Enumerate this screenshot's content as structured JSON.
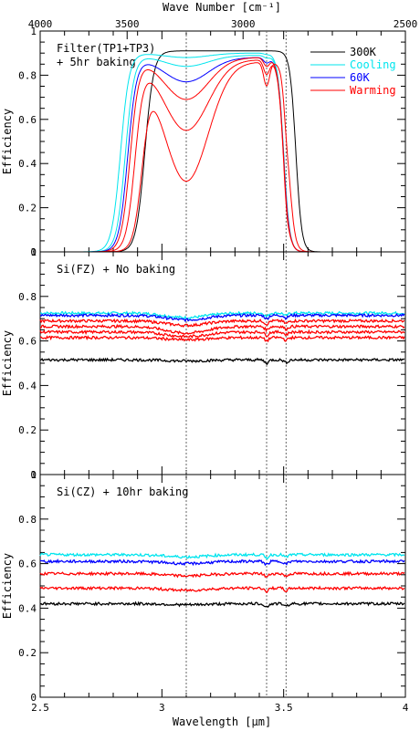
{
  "figure": {
    "top_axis_label": "Wave Number [cm⁻¹]",
    "bottom_axis_label": "Wavelength [μm]",
    "y_label": "Efficiency"
  },
  "legend": {
    "entries": [
      {
        "label": "300K",
        "color": "#000000"
      },
      {
        "label": "Cooling",
        "color": "#00e5ee"
      },
      {
        "label": "60K",
        "color": "#0000ff"
      },
      {
        "label": "Warming",
        "color": "#ff0000"
      }
    ],
    "placement": "top-right of top panel"
  },
  "chart_data": [
    {
      "type": "line",
      "panel_label_lines": [
        "Filter(TP1+TP3)",
        "+ 5hr baking"
      ],
      "xlabel": "Wavelength [μm]",
      "ylabel": "Efficiency",
      "xlim": [
        2.5,
        4.0
      ],
      "ylim": [
        0,
        1
      ],
      "x_ticks": [
        "2.5",
        "3",
        "3.5",
        "4"
      ],
      "y_ticks": [
        "0",
        "0.2",
        "0.4",
        "0.6",
        "0.8",
        "1"
      ],
      "top_axis": {
        "label": "Wave Number [cm⁻¹]",
        "ticks": [
          "4000",
          "3500",
          "3000",
          "2500"
        ]
      },
      "vertical_reference_lines_um": [
        3.1,
        3.43,
        3.51
      ],
      "series": [
        {
          "name": "300K",
          "color": "#000000",
          "edge_low": 2.93,
          "edge_high": 3.55,
          "plateau": 0.91,
          "dip_depth": 0.0
        },
        {
          "name": "Cooling",
          "color": "#00e5ee",
          "edge_low": 2.83,
          "edge_high": 3.5,
          "plateau": 0.9,
          "dip_depth": 0.02
        },
        {
          "name": "Cooling",
          "color": "#00e5ee",
          "edge_low": 2.85,
          "edge_high": 3.5,
          "plateau": 0.89,
          "dip_depth": 0.05
        },
        {
          "name": "60K",
          "color": "#0000ff",
          "edge_low": 2.86,
          "edge_high": 3.5,
          "plateau": 0.88,
          "dip_depth": 0.11
        },
        {
          "name": "Warming",
          "color": "#ff0000",
          "edge_low": 2.87,
          "edge_high": 3.5,
          "plateau": 0.88,
          "dip_depth": 0.19
        },
        {
          "name": "Warming",
          "color": "#ff0000",
          "edge_low": 2.89,
          "edge_high": 3.5,
          "plateau": 0.87,
          "dip_depth": 0.32
        },
        {
          "name": "Warming",
          "color": "#ff0000",
          "edge_low": 2.92,
          "edge_high": 3.52,
          "plateau": 0.86,
          "dip_depth": 0.54
        }
      ]
    },
    {
      "type": "line",
      "panel_label_lines": [
        "Si(FZ) + No baking"
      ],
      "xlabel": "Wavelength [μm]",
      "ylabel": "Efficiency",
      "xlim": [
        2.5,
        4.0
      ],
      "ylim": [
        0,
        1
      ],
      "x_ticks": [
        "2.5",
        "3",
        "3.5",
        "4"
      ],
      "y_ticks": [
        "0",
        "0.2",
        "0.4",
        "0.6",
        "0.8",
        "1"
      ],
      "series": [
        {
          "name": "Cooling",
          "color": "#00e5ee",
          "level": 0.725,
          "dip_depth": 0.02
        },
        {
          "name": "60K",
          "color": "#0000ff",
          "level": 0.715,
          "dip_depth": 0.02
        },
        {
          "name": "Warming",
          "color": "#ff0000",
          "level": 0.69,
          "dip_depth": 0.02
        },
        {
          "name": "Warming",
          "color": "#ff0000",
          "level": 0.665,
          "dip_depth": 0.03
        },
        {
          "name": "Warming",
          "color": "#ff0000",
          "level": 0.64,
          "dip_depth": 0.02
        },
        {
          "name": "Warming",
          "color": "#ff0000",
          "level": 0.615,
          "dip_depth": 0.01
        },
        {
          "name": "300K",
          "color": "#000000",
          "level": 0.515,
          "dip_depth": 0.005
        }
      ]
    },
    {
      "type": "line",
      "panel_label_lines": [
        "Si(CZ) + 10hr baking"
      ],
      "xlabel": "Wavelength [μm]",
      "ylabel": "Efficiency",
      "xlim": [
        2.5,
        4.0
      ],
      "ylim": [
        0,
        1
      ],
      "x_ticks": [
        "2.5",
        "3",
        "3.5",
        "4"
      ],
      "y_ticks": [
        "0",
        "0.2",
        "0.4",
        "0.6",
        "0.8",
        "1"
      ],
      "series": [
        {
          "name": "Cooling",
          "color": "#00e5ee",
          "level": 0.64,
          "dip_depth": 0.01
        },
        {
          "name": "60K",
          "color": "#0000ff",
          "level": 0.61,
          "dip_depth": 0.01
        },
        {
          "name": "Warming",
          "color": "#ff0000",
          "level": 0.555,
          "dip_depth": 0.01
        },
        {
          "name": "Warming",
          "color": "#ff0000",
          "level": 0.49,
          "dip_depth": 0.01
        },
        {
          "name": "300K",
          "color": "#000000",
          "level": 0.42,
          "dip_depth": 0.005
        }
      ]
    }
  ]
}
